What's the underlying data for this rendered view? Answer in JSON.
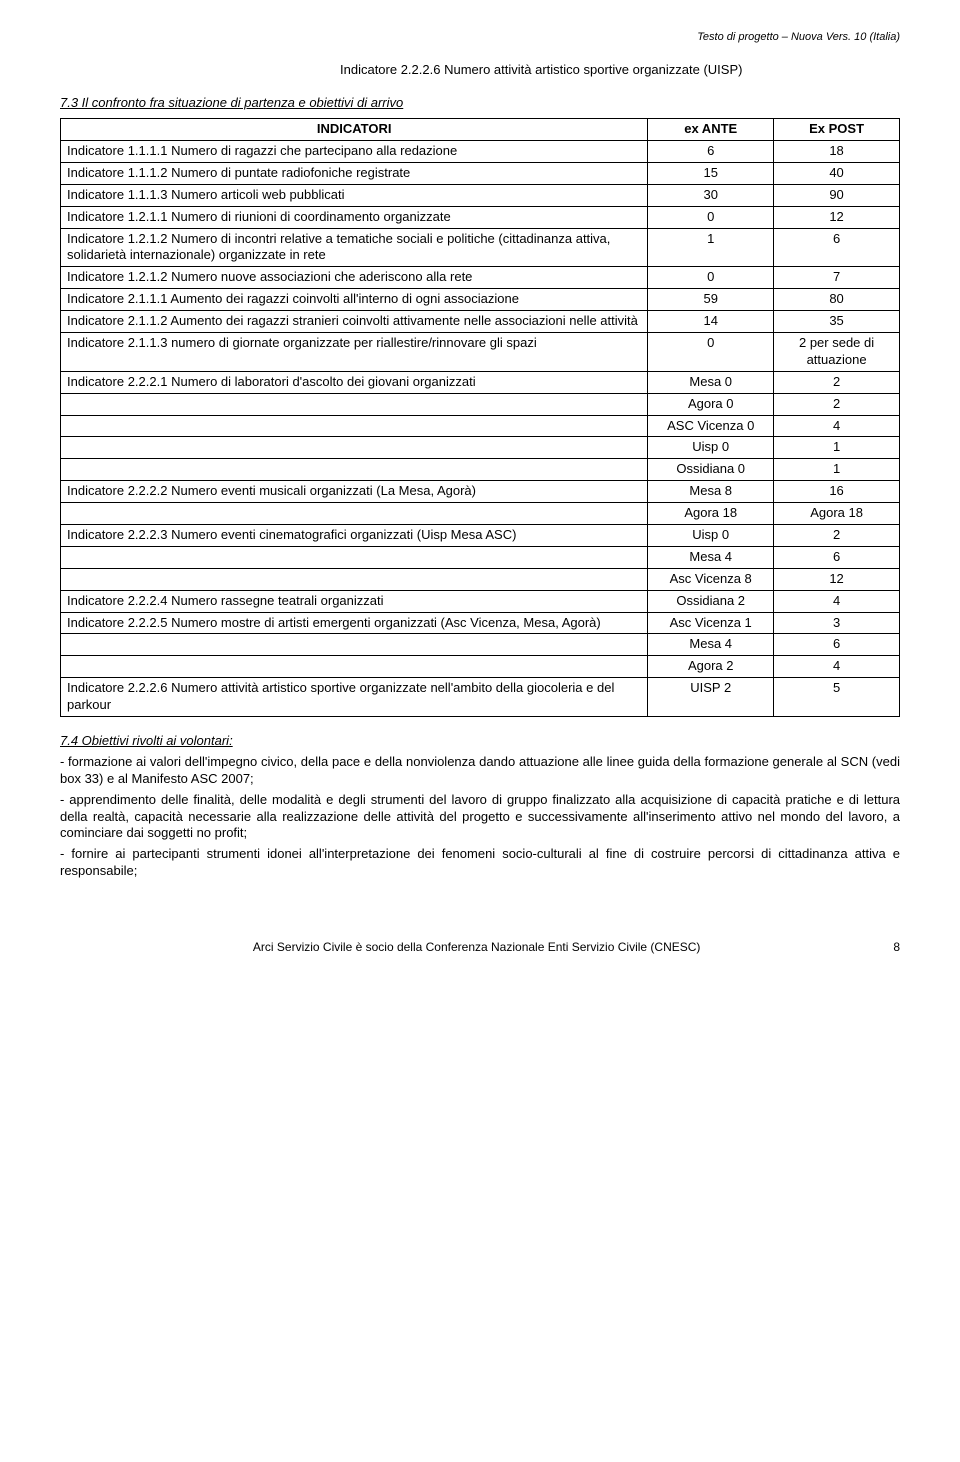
{
  "header_right": "Testo di progetto – Nuova Vers. 10 (Italia)",
  "indicatore_box": "Indicatore 2.2.2.6 Numero attività artistico sportive organizzate (UISP)",
  "section_73": "7.3 Il confronto fra situazione di partenza e obiettivi di arrivo",
  "table": {
    "head": {
      "c1": "INDICATORI",
      "c2": "ex ANTE",
      "c3": "Ex POST"
    },
    "rows": [
      {
        "c1": "Indicatore 1.1.1.1 Numero di ragazzi che partecipano alla redazione",
        "c2": "6",
        "c3": "18"
      },
      {
        "c1": "Indicatore 1.1.1.2 Numero di puntate radiofoniche registrate",
        "c2": "15",
        "c3": "40"
      },
      {
        "c1": "Indicatore 1.1.1.3 Numero articoli web pubblicati",
        "c2": "30",
        "c3": "90"
      },
      {
        "c1": "Indicatore 1.2.1.1 Numero di riunioni di coordinamento organizzate",
        "c2": "0",
        "c3": "12"
      },
      {
        "c1": "Indicatore 1.2.1.2 Numero  di incontri relative a tematiche sociali e politiche (cittadinanza attiva, solidarietà internazionale) organizzate in rete",
        "c2": "1",
        "c3": "6"
      },
      {
        "c1": "Indicatore 1.2.1.2 Numero nuove associazioni che aderiscono alla rete",
        "c2": "0",
        "c3": "7"
      },
      {
        "c1": "Indicatore 2.1.1.1 Aumento dei ragazzi coinvolti all'interno di ogni associazione",
        "c2": "59",
        "c3": "80"
      },
      {
        "c1": "Indicatore 2.1.1.2 Aumento dei ragazzi stranieri coinvolti attivamente nelle associazioni nelle attività",
        "c2": "14",
        "c3": "35"
      },
      {
        "c1": "Indicatore 2.1.1.3 numero di giornate organizzate per riallestire/rinnovare gli spazi",
        "c2": "0",
        "c3": "2 per sede di attuazione"
      },
      {
        "c1": "Indicatore 2.2.2.1 Numero di laboratori d'ascolto dei giovani organizzati",
        "c2": "Mesa 0",
        "c3": "2"
      },
      {
        "c1": "",
        "c2": "Agora 0",
        "c3": "2"
      },
      {
        "c1": "",
        "c2": "ASC Vicenza 0",
        "c3": "4"
      },
      {
        "c1": "",
        "c2": "Uisp 0",
        "c3": "1"
      },
      {
        "c1": "",
        "c2": "Ossidiana 0",
        "c3": "1"
      },
      {
        "c1": "Indicatore 2.2.2.2 Numero eventi musicali organizzati (La Mesa, Agorà)",
        "c2": "Mesa 8",
        "c3": "16"
      },
      {
        "c1": "",
        "c2": "Agora 18",
        "c3": "Agora 18"
      },
      {
        "c1": "Indicatore 2.2.2.3 Numero eventi cinematografici organizzati (Uisp Mesa ASC)",
        "c2": "Uisp 0",
        "c3": "2"
      },
      {
        "c1": "",
        "c2": "Mesa 4",
        "c3": "6"
      },
      {
        "c1": "",
        "c2": "Asc Vicenza 8",
        "c3": "12"
      },
      {
        "c1": "Indicatore 2.2.2.4 Numero rassegne teatrali organizzati",
        "c2": "Ossidiana 2",
        "c3": "4"
      },
      {
        "c1": "Indicatore 2.2.2.5 Numero mostre di artisti emergenti organizzati (Asc Vicenza, Mesa, Agorà)",
        "c2": "Asc Vicenza 1",
        "c3": "3"
      },
      {
        "c1": "",
        "c2": "Mesa 4",
        "c3": "6"
      },
      {
        "c1": "",
        "c2": "Agora 2",
        "c3": "4"
      },
      {
        "c1": "Indicatore 2.2.2.6  Numero attività artistico sportive organizzate nell'ambito della giocoleria e del parkour",
        "c2": "UISP 2",
        "c3": "5"
      }
    ]
  },
  "section_74_title": "7.4 Obiettivi rivolti ai volontari:",
  "section_74_items": [
    "- formazione ai valori dell'impegno civico, della pace e della nonviolenza dando attuazione alle linee guida della formazione generale al SCN (vedi box 33) e al Manifesto ASC 2007;",
    "- apprendimento delle finalità, delle modalità e degli strumenti del lavoro di gruppo finalizzato alla acquisizione di capacità pratiche e di lettura della realtà, capacità necessarie alla realizzazione delle attività del progetto e successivamente all'inserimento attivo nel mondo del lavoro,  a cominciare dai soggetti no profit;",
    "- fornire ai partecipanti strumenti idonei all'interpretazione dei fenomeni socio-culturali al fine di costruire percorsi di cittadinanza attiva e responsabile;"
  ],
  "footer_text": "Arci Servizio Civile è socio della Conferenza Nazionale Enti Servizio Civile (CNESC)",
  "page_number": "8"
}
